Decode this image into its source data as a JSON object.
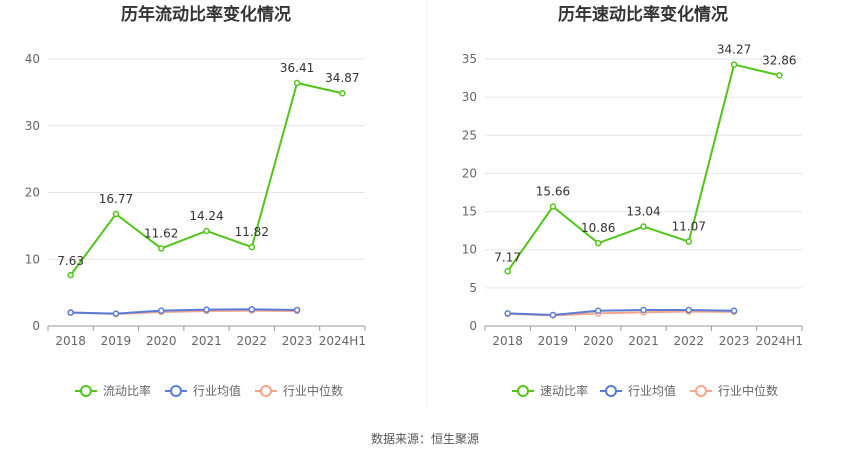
{
  "source": "数据来源：恒生聚源",
  "chart_data": [
    {
      "type": "line",
      "title": "历年流动比率变化情况",
      "categories": [
        "2018",
        "2019",
        "2020",
        "2021",
        "2022",
        "2023",
        "2024H1"
      ],
      "ylim": [
        0,
        40
      ],
      "yticks": [
        0,
        10,
        20,
        30,
        40
      ],
      "grid": true,
      "legend": "bottom",
      "series": [
        {
          "name": "流动比率",
          "color": "#52c41a",
          "values": [
            7.63,
            16.77,
            11.62,
            14.24,
            11.82,
            36.41,
            34.87
          ],
          "labels": [
            "7.63",
            "16.77",
            "11.62",
            "14.24",
            "11.82",
            "36.41",
            "34.87"
          ]
        },
        {
          "name": "行业均值",
          "color": "#5b7bd6",
          "values": [
            2.0,
            1.85,
            2.3,
            2.45,
            2.5,
            2.4,
            null
          ]
        },
        {
          "name": "行业中位数",
          "color": "#f4a58a",
          "values": [
            2.05,
            1.8,
            2.1,
            2.25,
            2.3,
            2.25,
            null
          ]
        }
      ]
    },
    {
      "type": "line",
      "title": "历年速动比率变化情况",
      "categories": [
        "2018",
        "2019",
        "2020",
        "2021",
        "2022",
        "2023",
        "2024H1"
      ],
      "ylim": [
        0,
        35
      ],
      "yticks": [
        0,
        5,
        10,
        15,
        20,
        25,
        30,
        35
      ],
      "grid": true,
      "legend": "bottom",
      "series": [
        {
          "name": "速动比率",
          "color": "#52c41a",
          "values": [
            7.17,
            15.66,
            10.86,
            13.04,
            11.07,
            34.27,
            32.86
          ],
          "labels": [
            "7.17",
            "15.66",
            "10.86",
            "13.04",
            "11.07",
            "34.27",
            "32.86"
          ]
        },
        {
          "name": "行业均值",
          "color": "#5b7bd6",
          "values": [
            1.65,
            1.45,
            2.0,
            2.1,
            2.1,
            2.0,
            null
          ]
        },
        {
          "name": "行业中位数",
          "color": "#f4a58a",
          "values": [
            1.6,
            1.4,
            1.65,
            1.8,
            1.9,
            1.85,
            null
          ]
        }
      ]
    }
  ]
}
